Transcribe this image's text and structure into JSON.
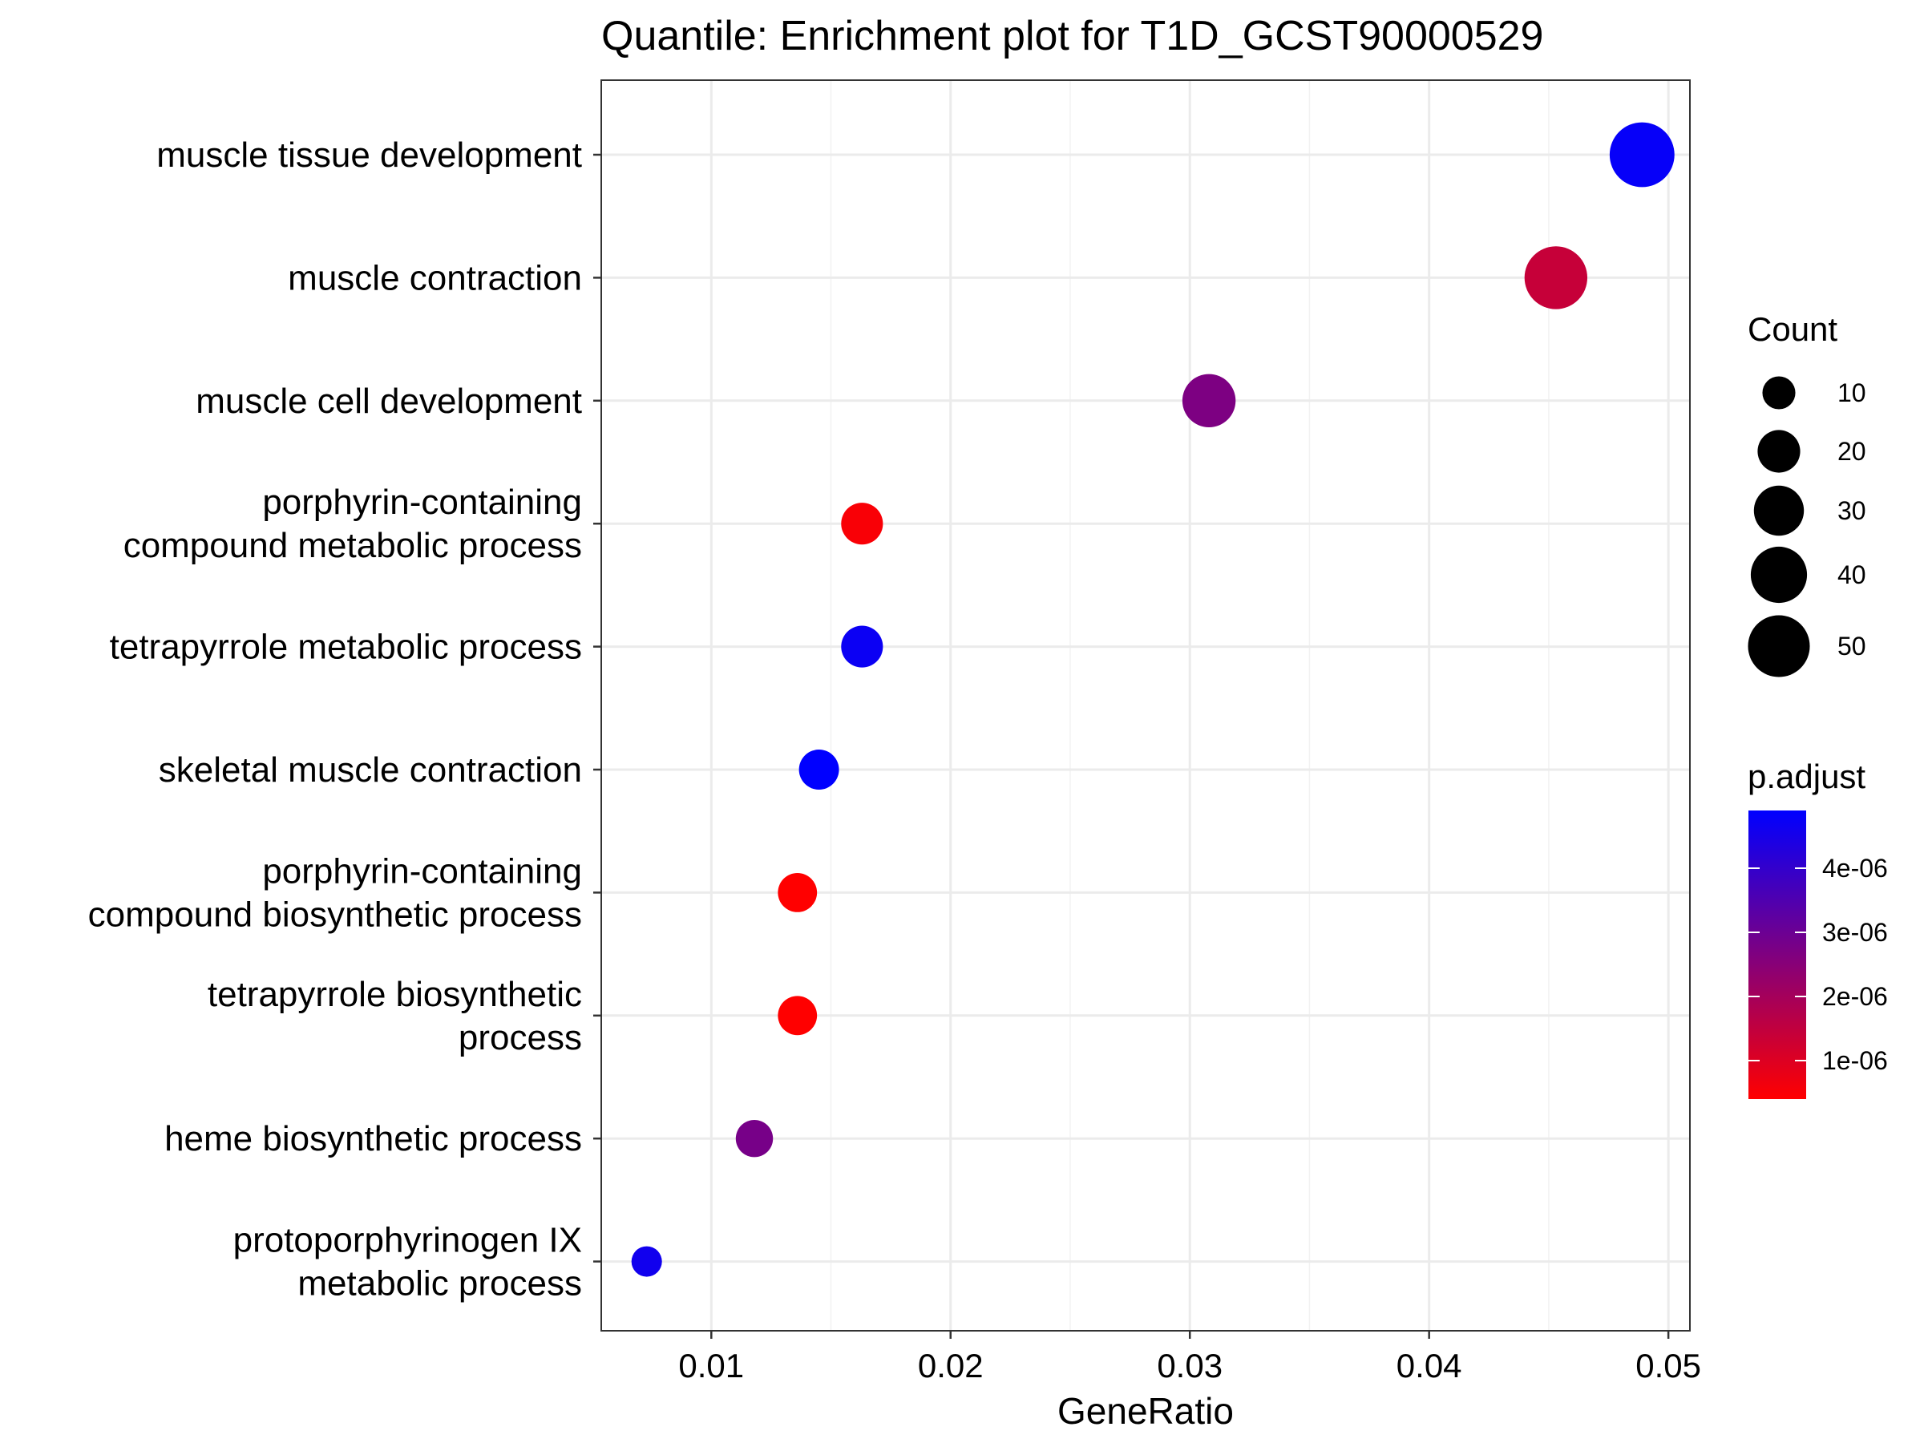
{
  "chart_data": {
    "type": "scatter",
    "title": "Quantile: Enrichment plot for T1D_GCST90000529",
    "xlabel": "GeneRatio",
    "ylabel": "",
    "xlim": [
      0.0054,
      0.0509
    ],
    "x_ticks": [
      0.01,
      0.02,
      0.03,
      0.04,
      0.05
    ],
    "x_tick_labels": [
      "0.01",
      "0.02",
      "0.03",
      "0.04",
      "0.05"
    ],
    "grid": true,
    "categories": [
      "muscle tissue development",
      "muscle contraction",
      "muscle cell development",
      "porphyrin-containing compound metabolic process",
      "tetrapyrrole metabolic process",
      "skeletal muscle contraction",
      "porphyrin-containing compound biosynthetic process",
      "tetrapyrrole biosynthetic process",
      "heme biosynthetic process",
      "protoporphyrinogen IX metabolic process"
    ],
    "category_lines": [
      [
        "muscle tissue development"
      ],
      [
        "muscle contraction"
      ],
      [
        "muscle cell development"
      ],
      [
        "porphyrin-containing",
        "compound metabolic process"
      ],
      [
        "tetrapyrrole metabolic process"
      ],
      [
        "skeletal muscle contraction"
      ],
      [
        "porphyrin-containing",
        "compound biosynthetic process"
      ],
      [
        "tetrapyrrole biosynthetic",
        "process"
      ],
      [
        "heme biosynthetic process"
      ],
      [
        "protoporphyrinogen IX",
        "metabolic process"
      ]
    ],
    "points": [
      {
        "term": "muscle tissue development",
        "gene_ratio": 0.0489,
        "count": 56,
        "p_adjust": 4.8e-06
      },
      {
        "term": "muscle contraction",
        "gene_ratio": 0.0453,
        "count": 52,
        "p_adjust": 1.4e-06
      },
      {
        "term": "muscle cell development",
        "gene_ratio": 0.0308,
        "count": 35,
        "p_adjust": 2.7e-06
      },
      {
        "term": "porphyrin-containing compound metabolic process",
        "gene_ratio": 0.0163,
        "count": 19,
        "p_adjust": 5e-07
      },
      {
        "term": "tetrapyrrole metabolic process",
        "gene_ratio": 0.0163,
        "count": 19,
        "p_adjust": 4.7e-06
      },
      {
        "term": "skeletal muscle contraction",
        "gene_ratio": 0.0145,
        "count": 17,
        "p_adjust": 4.9e-06
      },
      {
        "term": "porphyrin-containing compound biosynthetic process",
        "gene_ratio": 0.0136,
        "count": 16,
        "p_adjust": 4e-07
      },
      {
        "term": "tetrapyrrole biosynthetic process",
        "gene_ratio": 0.0136,
        "count": 16,
        "p_adjust": 4e-07
      },
      {
        "term": "heme biosynthetic process",
        "gene_ratio": 0.0118,
        "count": 14,
        "p_adjust": 2.8e-06
      },
      {
        "term": "protoporphyrinogen IX metabolic process",
        "gene_ratio": 0.0073,
        "count": 8,
        "p_adjust": 4.6e-06
      }
    ],
    "size_legend": {
      "title": "Count",
      "values": [
        10,
        20,
        30,
        40,
        50
      ],
      "labels": [
        "10",
        "20",
        "30",
        "40",
        "50"
      ]
    },
    "color_legend": {
      "title": "p.adjust",
      "low_color": "#FF0000",
      "high_color": "#0000FF",
      "range": [
        4e-07,
        4.9e-06
      ],
      "ticks": [
        1e-06,
        2e-06,
        3e-06,
        4e-06
      ],
      "tick_labels": [
        "1e-06",
        "2e-06",
        "3e-06",
        "4e-06"
      ]
    },
    "legend_position": "right"
  },
  "colors": {
    "panel_border": "#333333",
    "grid_major": "#EBEBEB",
    "grid_minor": "#F2F2F2",
    "axis_tick": "#333333",
    "legend_point": "#000000"
  }
}
